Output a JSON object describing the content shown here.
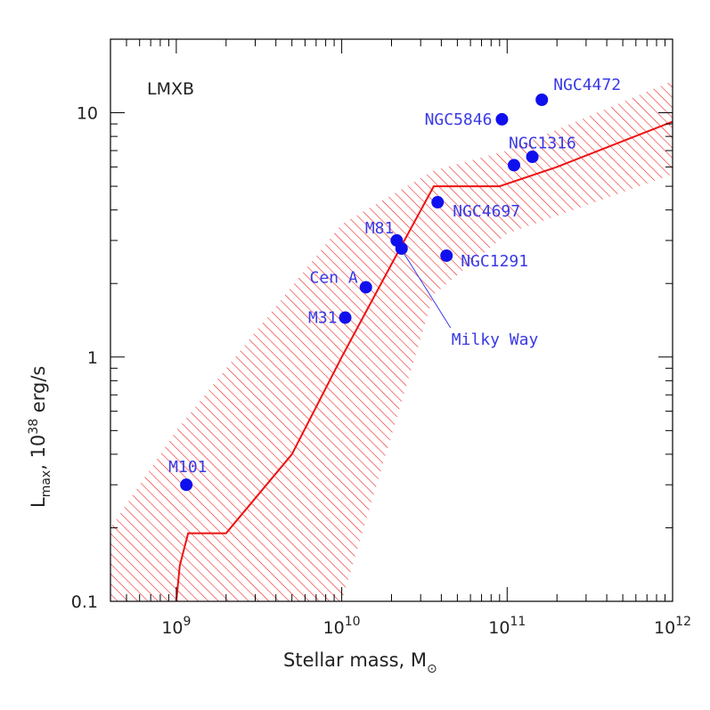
{
  "chart_data": {
    "type": "scatter",
    "annotation": "LMXB",
    "xlabel": {
      "main": "Stellar mass, M",
      "sub": "⊙"
    },
    "ylabel": {
      "pre": "L",
      "sub": "max",
      "mid": ",  10",
      "sup": "38",
      "post": " erg/s"
    },
    "x_scale": "log",
    "y_scale": "log",
    "xlim": [
      400000000.0,
      1000000000000.0
    ],
    "ylim": [
      0.1,
      20
    ],
    "x_ticks": [
      {
        "value": 1000000000.0,
        "base": "10",
        "exp": "9"
      },
      {
        "value": 10000000000.0,
        "base": "10",
        "exp": "10"
      },
      {
        "value": 100000000000.0,
        "base": "10",
        "exp": "11"
      },
      {
        "value": 1000000000000.0,
        "base": "10",
        "exp": "12"
      }
    ],
    "y_ticks": [
      {
        "value": 0.1,
        "label": "0.1"
      },
      {
        "value": 1,
        "label": "1"
      },
      {
        "value": 10,
        "label": "10"
      }
    ],
    "points_color": "#1010ee",
    "model_color": "#ee1111",
    "points": [
      {
        "name": "M101",
        "x": 1150000000.0,
        "y": 0.3
      },
      {
        "name": "M31",
        "x": 10500000000.0,
        "y": 1.45
      },
      {
        "name": "Cen A",
        "x": 14000000000.0,
        "y": 1.93
      },
      {
        "name": "M81",
        "x": 21500000000.0,
        "y": 3.0
      },
      {
        "name": "Milky Way",
        "x": 23000000000.0,
        "y": 2.78
      },
      {
        "name": "NGC4697",
        "x": 38000000000.0,
        "y": 4.3
      },
      {
        "name": "NGC1291",
        "x": 43000000000.0,
        "y": 2.6
      },
      {
        "name": "NGC5846",
        "x": 93000000000.0,
        "y": 9.4
      },
      {
        "name": "NGC1316",
        "x": 110000000000.0,
        "y": 6.1
      },
      {
        "name": "NGC1316",
        "x": 142000000000.0,
        "y": 6.6
      },
      {
        "name": "NGC4472",
        "x": 162000000000.0,
        "y": 11.3
      }
    ],
    "model_curve": {
      "x": [
        1000000000.0,
        1050000000.0,
        1180000000.0,
        2000000000.0,
        5000000000.0,
        10000000000.0,
        20000000000.0,
        36000000000.0,
        90000000000.0,
        200000000000.0,
        1000000000000.0
      ],
      "y": [
        0.1,
        0.14,
        0.19,
        0.19,
        0.4,
        1.0,
        2.4,
        5.0,
        5.0,
        6.0,
        9.2
      ]
    },
    "model_band": {
      "x": [
        400000000.0,
        1000000000.0,
        10000000000.0,
        36000000000.0,
        100000000000.0,
        1000000000000.0
      ],
      "upper": [
        0.2,
        0.5,
        3.5,
        5.8,
        7.0,
        13.5
      ],
      "lower": [
        0.1,
        0.1,
        0.1,
        1.8,
        3.2,
        5.6
      ]
    }
  }
}
